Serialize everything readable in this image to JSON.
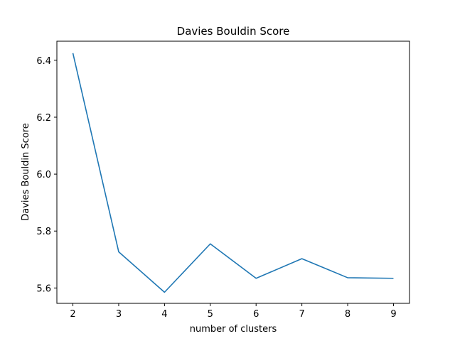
{
  "chart_data": {
    "type": "line",
    "title": "Davies Bouldin Score",
    "xlabel": "number of clusters",
    "ylabel": "Davies Bouldin Score",
    "x": [
      2,
      3,
      4,
      5,
      6,
      7,
      8,
      9
    ],
    "xticks": [
      2,
      3,
      4,
      5,
      6,
      7,
      8,
      9
    ],
    "xlim": [
      1.65,
      9.35
    ],
    "yticks": [
      5.6,
      5.8,
      6.0,
      6.2,
      6.4
    ],
    "ytick_labels": [
      "5.6",
      "5.8",
      "6.0",
      "6.2",
      "6.4"
    ],
    "ylim": [
      5.546,
      6.467
    ],
    "grid": false,
    "series": [
      {
        "values": [
          6.425,
          5.727,
          5.585,
          5.755,
          5.634,
          5.703,
          5.636,
          5.634
        ],
        "color": "#1f77b4"
      }
    ]
  }
}
